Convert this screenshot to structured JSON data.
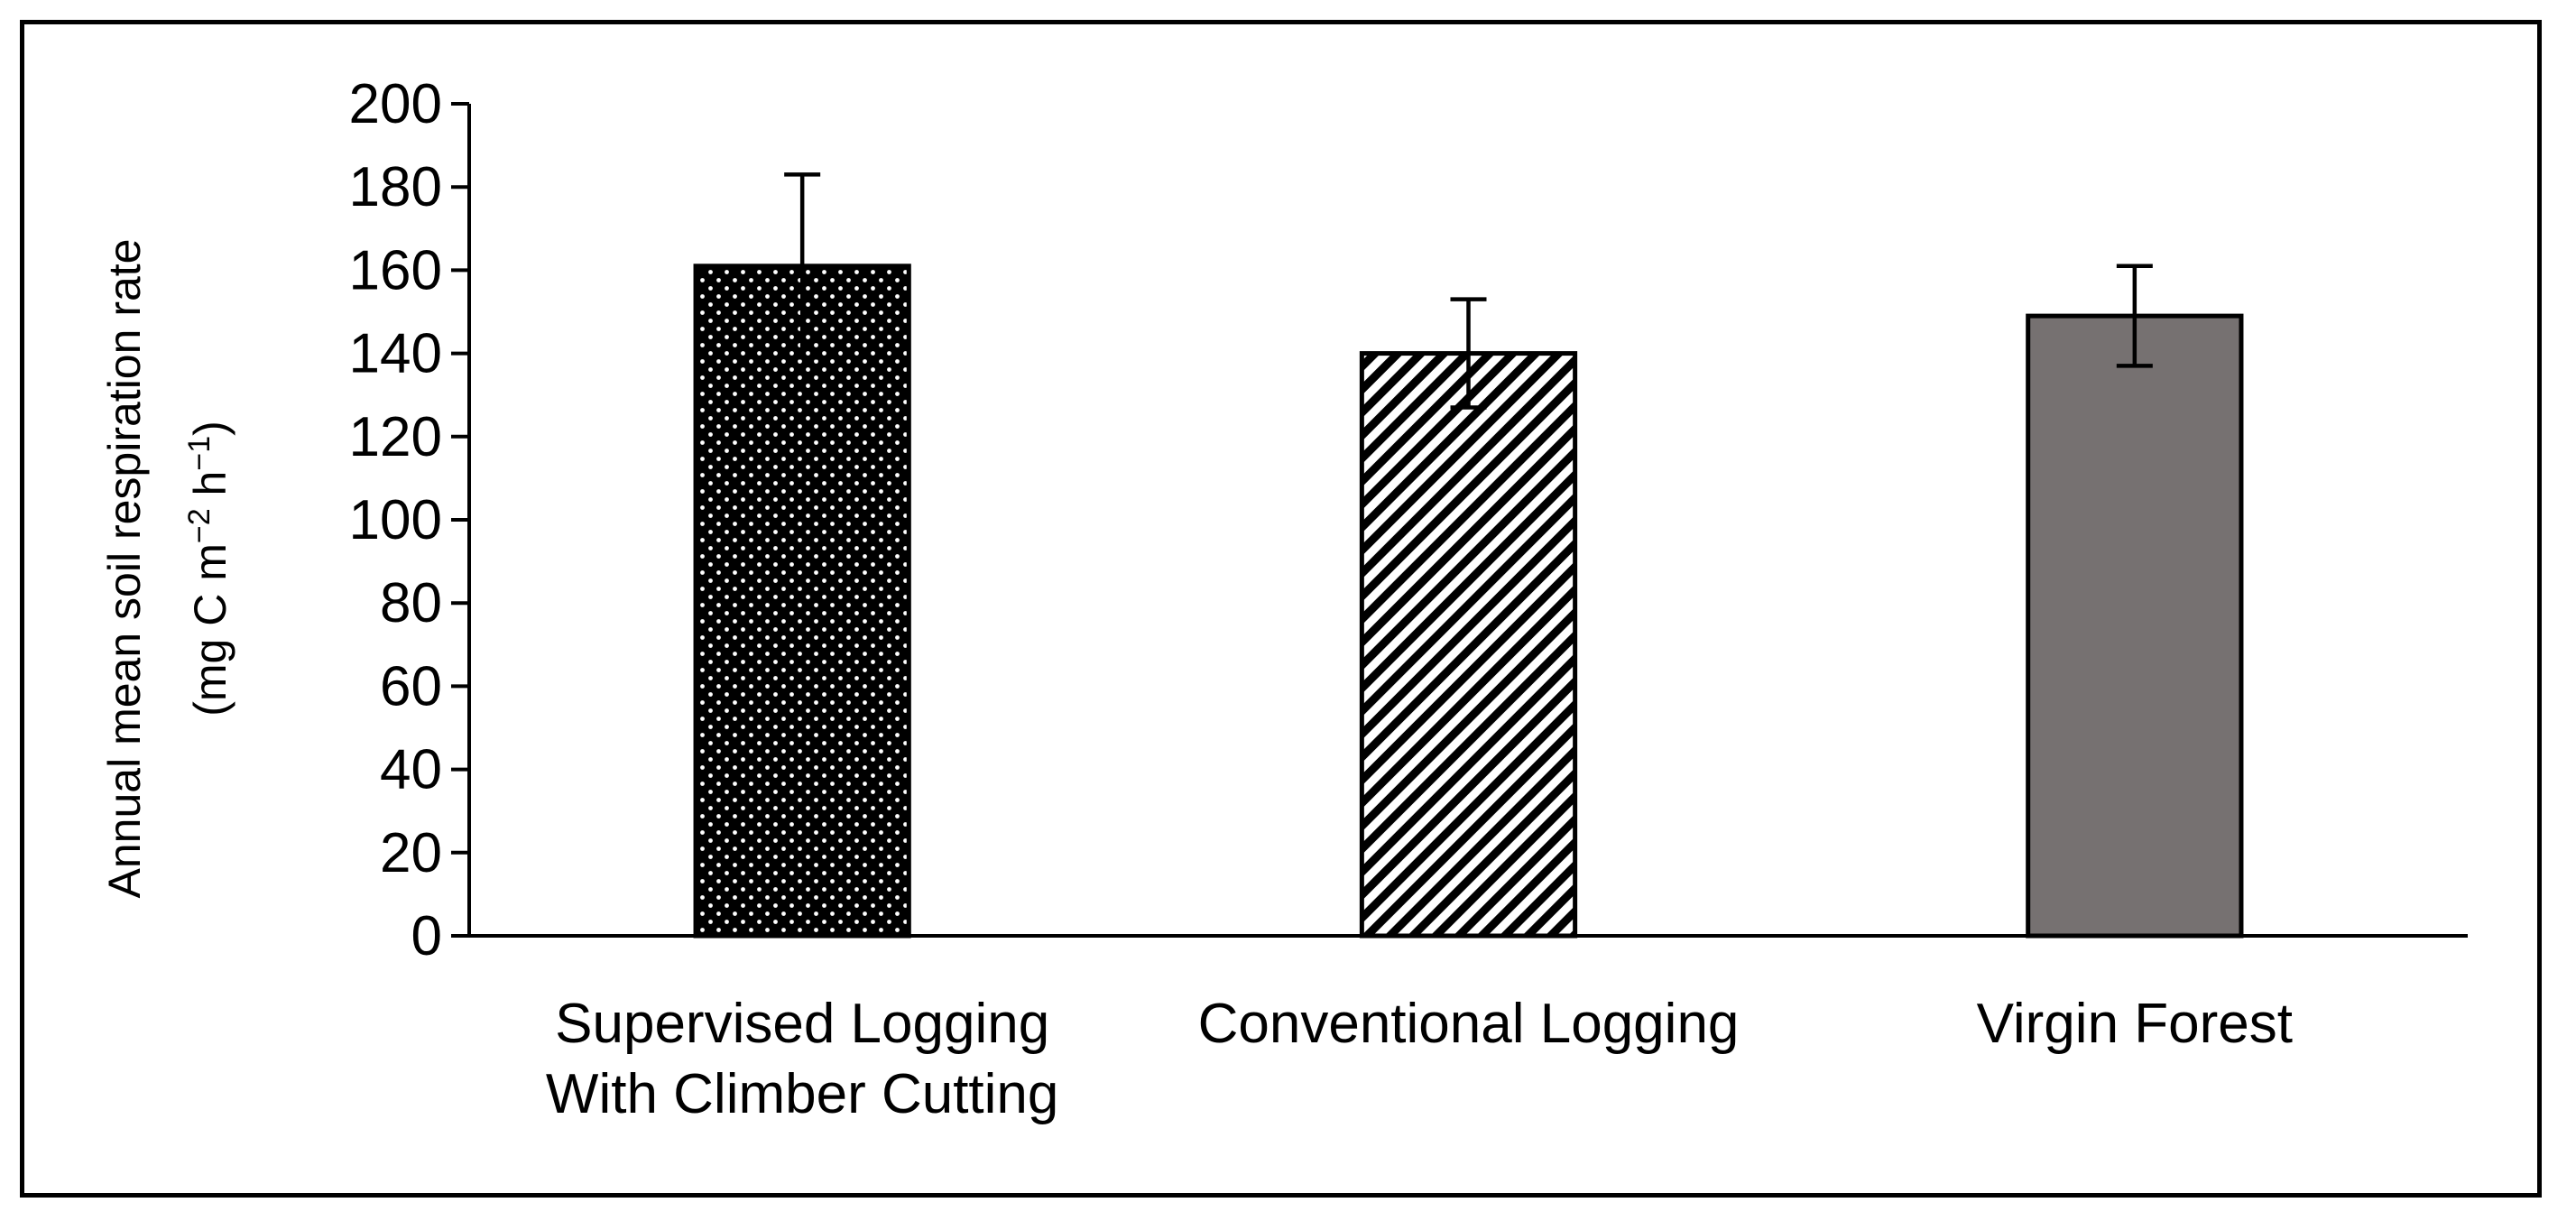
{
  "chart_data": {
    "type": "bar",
    "title": "",
    "categories": [
      [
        "Supervised Logging",
        "With Climber Cutting"
      ],
      [
        "Conventional Logging"
      ],
      [
        "Virgin Forest"
      ]
    ],
    "values": [
      161,
      140,
      149
    ],
    "error": [
      22,
      13,
      12
    ],
    "fill_styles": [
      "dots",
      "diagonal-stripes",
      "solid"
    ],
    "colors": {
      "dots_bg": "#000000",
      "dots_fg": "#ffffff",
      "stripes_bg": "#ffffff",
      "stripes_fg": "#000000",
      "solid": "#767171",
      "outline": "#000000"
    },
    "ylabel_line1": "Annual mean soil respiration rate",
    "ylabel_line2_parts": [
      "(mg C m",
      "−2",
      " h",
      "−1",
      ")"
    ],
    "ylim": [
      0,
      200
    ],
    "ytick_step": 20,
    "yticks": [
      "0",
      "20",
      "40",
      "60",
      "80",
      "100",
      "120",
      "140",
      "160",
      "180",
      "200"
    ],
    "grid": false,
    "legend": "none"
  }
}
